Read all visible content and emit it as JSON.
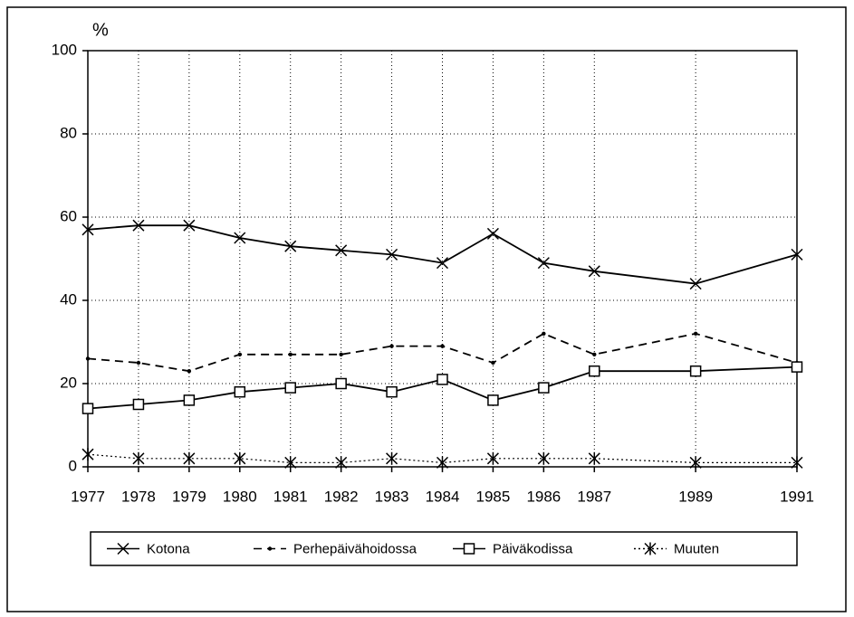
{
  "chart_data": {
    "type": "line",
    "ylabel": "%",
    "x": [
      1977,
      1978,
      1979,
      1980,
      1981,
      1982,
      1983,
      1984,
      1985,
      1986,
      1987,
      1989,
      1991
    ],
    "xlim": [
      1977,
      1991
    ],
    "xticks": [
      1977,
      1978,
      1979,
      1980,
      1981,
      1982,
      1983,
      1984,
      1985,
      1986,
      1987,
      1989,
      1991
    ],
    "ylim": [
      0,
      100
    ],
    "yticks": [
      0,
      20,
      40,
      60,
      80,
      100
    ],
    "grid": true,
    "legend": "bottom",
    "series": [
      {
        "name": "Kotona",
        "color": "#000000",
        "marker": "x",
        "linestyle": "solid",
        "values": [
          57,
          58,
          58,
          55,
          53,
          52,
          51,
          49,
          56,
          49,
          47,
          44,
          51
        ]
      },
      {
        "name": "Perhepäivähoidossa",
        "color": "#000000",
        "marker": "dot",
        "linestyle": "dashed",
        "values": [
          26,
          25,
          23,
          27,
          27,
          27,
          29,
          29,
          25,
          32,
          27,
          32,
          25
        ]
      },
      {
        "name": "Päiväkodissa",
        "color": "#000000",
        "marker": "square",
        "linestyle": "solid",
        "values": [
          14,
          15,
          16,
          18,
          19,
          20,
          18,
          21,
          16,
          19,
          23,
          23,
          24
        ]
      },
      {
        "name": "Muuten",
        "color": "#000000",
        "marker": "asterisk",
        "linestyle": "dotted",
        "values": [
          3,
          2,
          2,
          2,
          1,
          1,
          2,
          1,
          2,
          2,
          2,
          1,
          1
        ]
      }
    ]
  }
}
